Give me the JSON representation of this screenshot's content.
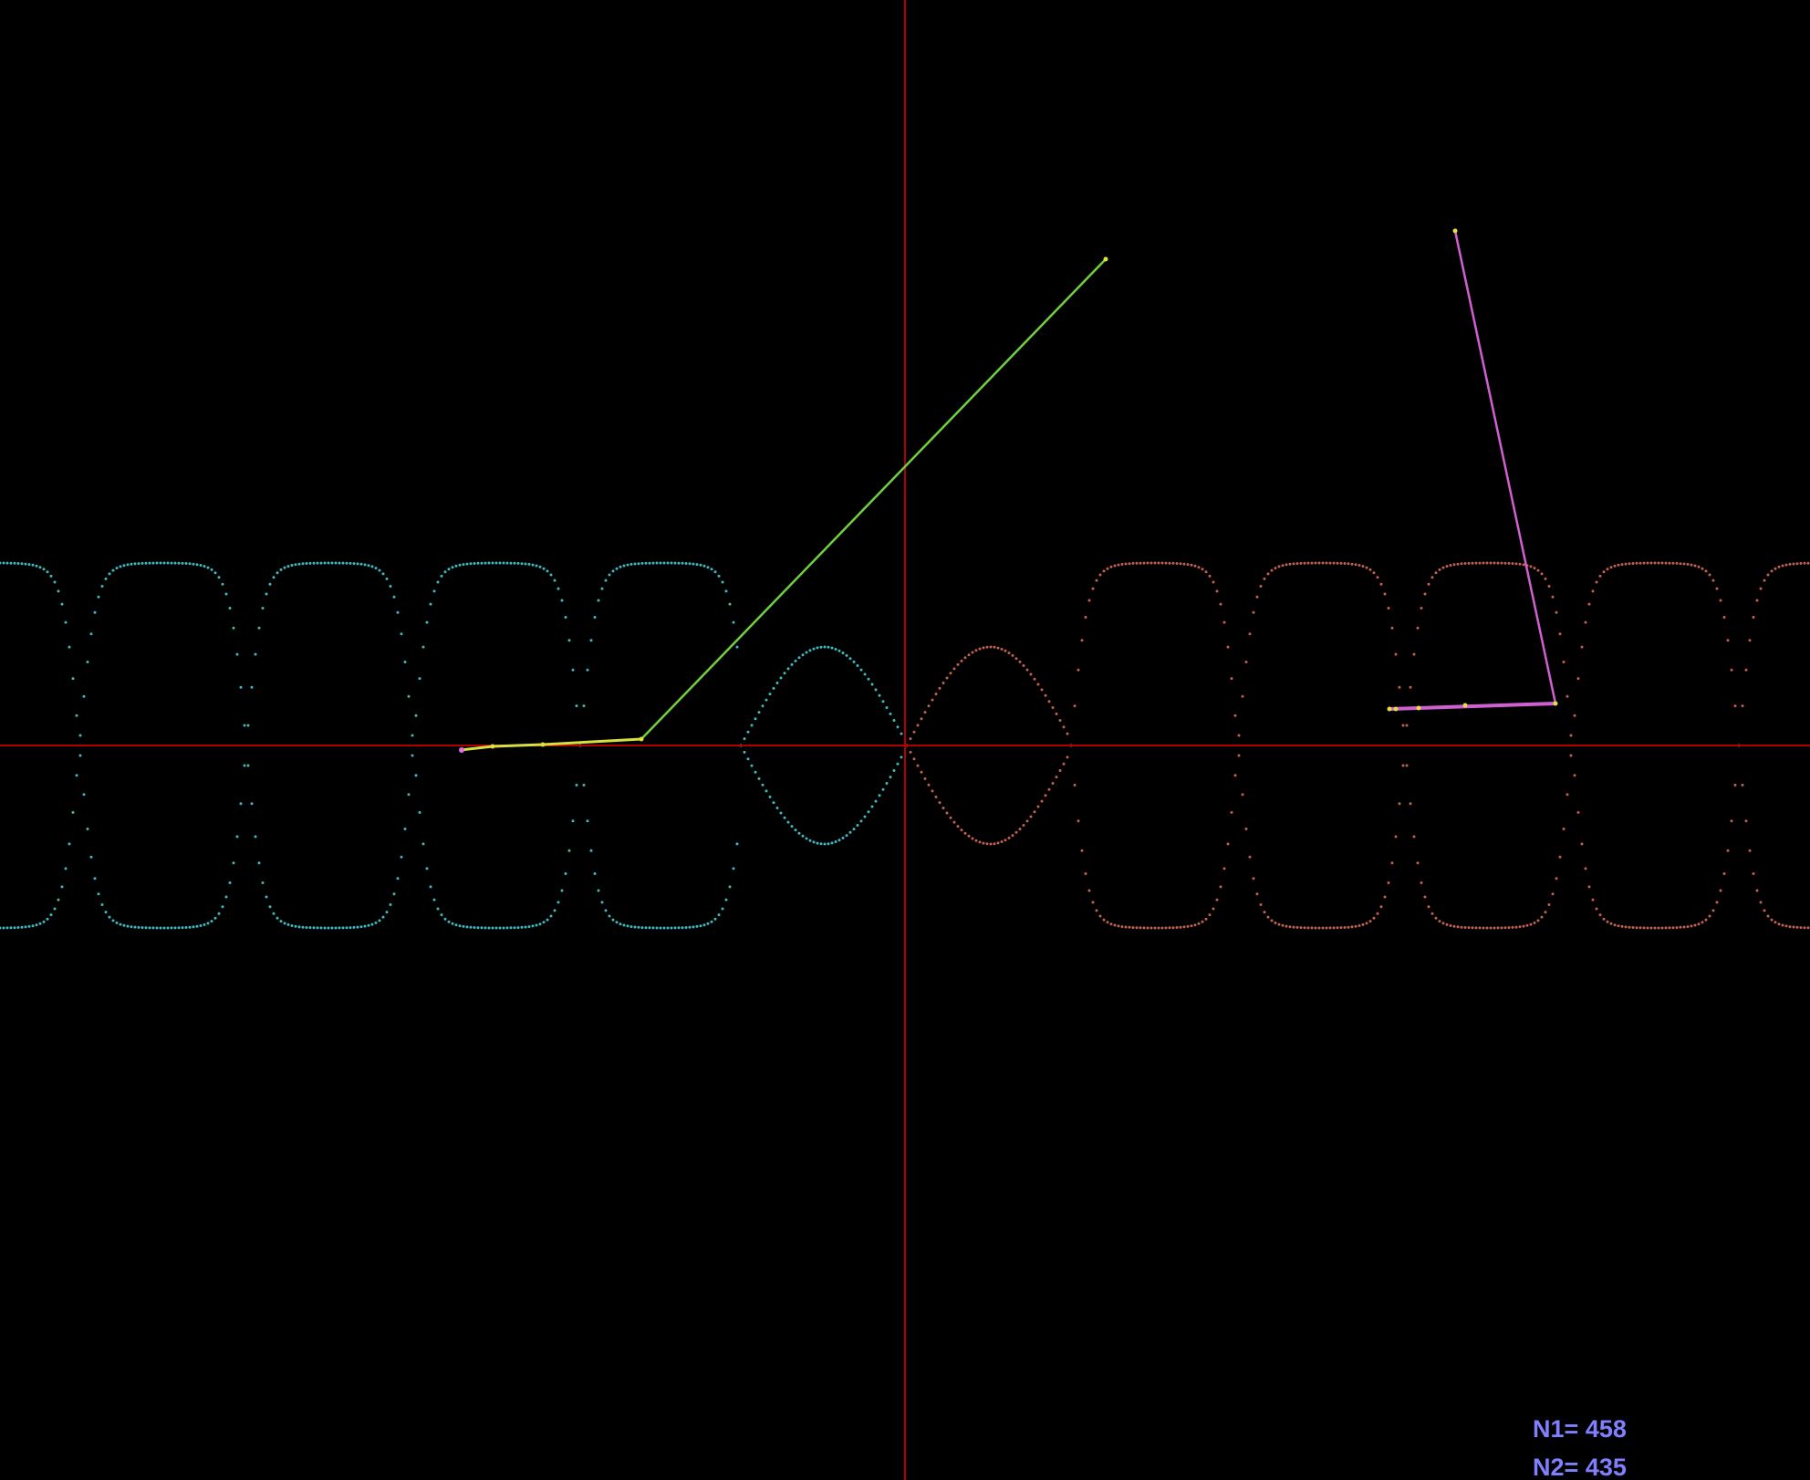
{
  "colors": {
    "background": "#000000",
    "axes": "#b00000",
    "left_curve_dots": "#40b8c0",
    "right_curve_dots": "#c06050",
    "left_linkage": "#70d040",
    "left_linkage_start": "#e070e0",
    "right_linkage": "#d060d0",
    "joint_marker": "#e0e040",
    "readout_text": "#8080ff"
  },
  "readout": {
    "n1_label": "N1=",
    "n1_value": "458",
    "n2_label": "N2=",
    "n2_value": "435"
  }
}
